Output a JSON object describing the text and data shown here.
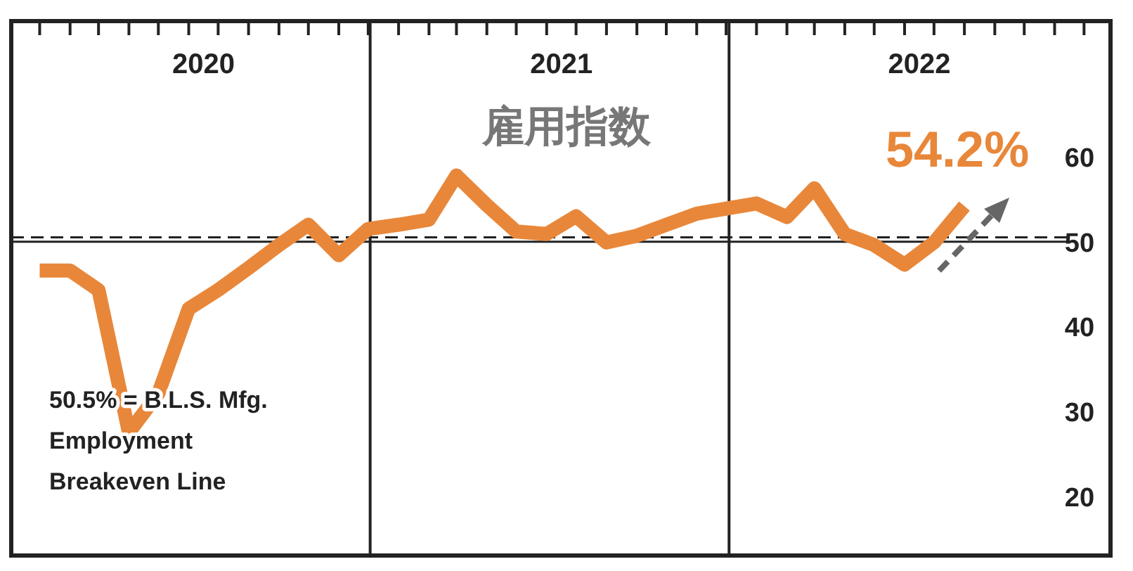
{
  "chart_data": {
    "type": "line",
    "title": "雇用指数",
    "x": [
      "2020-01",
      "2020-02",
      "2020-03",
      "2020-04",
      "2020-05",
      "2020-06",
      "2020-07",
      "2020-08",
      "2020-09",
      "2020-10",
      "2020-11",
      "2020-12",
      "2021-01",
      "2021-02",
      "2021-03",
      "2021-04",
      "2021-05",
      "2021-06",
      "2021-07",
      "2021-08",
      "2021-09",
      "2021-10",
      "2021-11",
      "2021-12",
      "2022-01",
      "2022-02",
      "2022-03",
      "2022-04",
      "2022-05",
      "2022-06",
      "2022-07",
      "2022-08"
    ],
    "series": [
      {
        "color": "#e8873a",
        "values": [
          46.6,
          46.6,
          44.3,
          27.5,
          32.1,
          42.1,
          44.3,
          46.9,
          49.6,
          52.0,
          48.4,
          51.5,
          52.0,
          52.6,
          57.8,
          54.3,
          51.2,
          50.9,
          53.0,
          49.9,
          50.7,
          52.0,
          53.3,
          53.9,
          54.5,
          52.9,
          56.3,
          50.9,
          49.6,
          47.3,
          49.9,
          54.2
        ]
      }
    ],
    "xlim": [
      "2019-12-03",
      "2022-12-28"
    ],
    "xticks": [
      {
        "value": "2020-01",
        "label": null
      },
      {
        "value": "2020-02",
        "label": null
      },
      {
        "value": "2020-03",
        "label": null
      },
      {
        "value": "2020-04",
        "label": null
      },
      {
        "value": "2020-05",
        "label": null
      },
      {
        "value": "2020-06",
        "label": null
      },
      {
        "value": "2020-07",
        "label": null
      },
      {
        "value": "2020-08",
        "label": null
      },
      {
        "value": "2020-09",
        "label": null
      },
      {
        "value": "2020-10",
        "label": null
      },
      {
        "value": "2020-11",
        "label": null
      },
      {
        "value": "2020-12",
        "label": null
      },
      {
        "value": "2021-01",
        "label": null
      },
      {
        "value": "2021-02",
        "label": null
      },
      {
        "value": "2021-03",
        "label": null
      },
      {
        "value": "2021-04",
        "label": null
      },
      {
        "value": "2021-05",
        "label": null
      },
      {
        "value": "2021-06",
        "label": null
      },
      {
        "value": "2021-07",
        "label": null
      },
      {
        "value": "2021-08",
        "label": null
      },
      {
        "value": "2021-09",
        "label": null
      },
      {
        "value": "2021-10",
        "label": null
      },
      {
        "value": "2021-11",
        "label": null
      },
      {
        "value": "2021-12",
        "label": null
      },
      {
        "value": "2022-01",
        "label": null
      },
      {
        "value": "2022-02",
        "label": null
      },
      {
        "value": "2022-03",
        "label": null
      },
      {
        "value": "2022-04",
        "label": null
      },
      {
        "value": "2022-05",
        "label": null
      },
      {
        "value": "2022-06",
        "label": null
      },
      {
        "value": "2022-07",
        "label": null
      },
      {
        "value": "2022-08",
        "label": null
      },
      {
        "value": "2022-09",
        "label": null
      },
      {
        "value": "2022-10",
        "label": null
      },
      {
        "value": "2022-11",
        "label": null
      },
      {
        "value": "2022-12",
        "label": null
      },
      {
        "value": "2020-06-16",
        "label": "2020"
      },
      {
        "value": "2021-06-16",
        "label": "2021"
      },
      {
        "value": "2022-06-16",
        "label": "2022"
      }
    ],
    "ylim": [
      13,
      76
    ],
    "yticks": [
      20,
      30,
      40,
      50,
      60
    ],
    "grid": false,
    "marker": "none",
    "line_style": "solid",
    "ref_lines": [
      {
        "axis": "y",
        "value": 50,
        "line_style": "solid",
        "color": "#222222"
      },
      {
        "axis": "y",
        "value": 50.5,
        "line_style": "dashed",
        "color": "#222222",
        "label": "50.5% = B.L.S. Mfg. Employment Breakeven Line"
      },
      {
        "axis": "x",
        "value": "2020-12-03",
        "line_style": "solid",
        "color": "#222222"
      },
      {
        "axis": "x",
        "value": "2021-12-04",
        "line_style": "solid",
        "color": "#222222"
      }
    ],
    "annotations": [
      {
        "text": "54.2%",
        "x": "2022-08",
        "y": 54.2
      }
    ]
  }
}
